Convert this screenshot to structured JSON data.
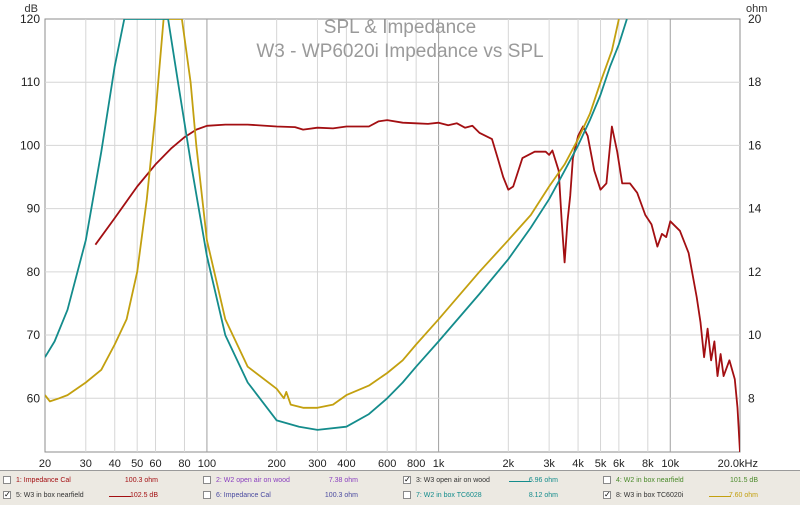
{
  "chart_data": {
    "type": "line",
    "title": "SPL & Impedance",
    "subtitle": "W3 - WP6020i Impedance vs SPL",
    "left_axis_unit": "dB",
    "right_axis_unit": "ohm",
    "x_unit": "Hz",
    "xscale": "log",
    "xlim": [
      20,
      20000
    ],
    "ylim_left": [
      51.5,
      120
    ],
    "ylim_right": [
      6.3,
      20
    ],
    "grid": true,
    "x_ticks": [
      {
        "v": 20,
        "label": "20"
      },
      {
        "v": 30,
        "label": "30"
      },
      {
        "v": 40,
        "label": "40"
      },
      {
        "v": 50,
        "label": "50"
      },
      {
        "v": 60,
        "label": "60"
      },
      {
        "v": 80,
        "label": "80"
      },
      {
        "v": 100,
        "label": "100"
      },
      {
        "v": 200,
        "label": "200"
      },
      {
        "v": 300,
        "label": "300"
      },
      {
        "v": 400,
        "label": "400"
      },
      {
        "v": 600,
        "label": "600"
      },
      {
        "v": 800,
        "label": "800"
      },
      {
        "v": 1000,
        "label": "1k"
      },
      {
        "v": 2000,
        "label": "2k"
      },
      {
        "v": 3000,
        "label": "3k"
      },
      {
        "v": 4000,
        "label": "4k"
      },
      {
        "v": 5000,
        "label": "5k"
      },
      {
        "v": 6000,
        "label": "6k"
      },
      {
        "v": 8000,
        "label": "8k"
      },
      {
        "v": 10000,
        "label": "10k"
      },
      {
        "v": 20000,
        "label": "20.0kHz"
      }
    ],
    "y_ticks_left": [
      60,
      70,
      80,
      90,
      100,
      110,
      120
    ],
    "y_ticks_right": [
      8,
      10,
      12,
      14,
      16,
      18,
      20
    ],
    "series": [
      {
        "name": "W3 in box nearfield",
        "axis": "left",
        "color": "#a30f12",
        "points": [
          [
            33,
            84.3
          ],
          [
            40,
            88.5
          ],
          [
            50,
            93.5
          ],
          [
            60,
            97
          ],
          [
            70,
            99.5
          ],
          [
            80,
            101.3
          ],
          [
            90,
            102.5
          ],
          [
            100,
            103.1
          ],
          [
            120,
            103.3
          ],
          [
            150,
            103.3
          ],
          [
            200,
            103
          ],
          [
            240,
            102.9
          ],
          [
            260,
            102.5
          ],
          [
            300,
            102.8
          ],
          [
            350,
            102.7
          ],
          [
            400,
            103
          ],
          [
            500,
            103
          ],
          [
            550,
            103.8
          ],
          [
            600,
            104
          ],
          [
            700,
            103.6
          ],
          [
            800,
            103.5
          ],
          [
            900,
            103.4
          ],
          [
            1000,
            103.6
          ],
          [
            1100,
            103.2
          ],
          [
            1200,
            103.5
          ],
          [
            1300,
            102.8
          ],
          [
            1400,
            103.1
          ],
          [
            1500,
            102
          ],
          [
            1700,
            101
          ],
          [
            1800,
            98
          ],
          [
            1900,
            95
          ],
          [
            2000,
            93
          ],
          [
            2100,
            93.5
          ],
          [
            2300,
            98
          ],
          [
            2600,
            99
          ],
          [
            2900,
            99
          ],
          [
            3000,
            98.5
          ],
          [
            3100,
            99.2
          ],
          [
            3300,
            96
          ],
          [
            3400,
            88
          ],
          [
            3500,
            81.5
          ],
          [
            3600,
            88
          ],
          [
            3700,
            92
          ],
          [
            3800,
            98
          ],
          [
            4000,
            101.5
          ],
          [
            4200,
            103
          ],
          [
            4400,
            101.5
          ],
          [
            4700,
            96
          ],
          [
            5000,
            93
          ],
          [
            5300,
            94
          ],
          [
            5600,
            103
          ],
          [
            5900,
            99
          ],
          [
            6200,
            94
          ],
          [
            6700,
            94
          ],
          [
            7200,
            92.5
          ],
          [
            7800,
            89
          ],
          [
            8300,
            87.5
          ],
          [
            8800,
            84
          ],
          [
            9200,
            86
          ],
          [
            9600,
            85.5
          ],
          [
            10000,
            88
          ],
          [
            11000,
            86.5
          ],
          [
            12000,
            83
          ],
          [
            13000,
            76
          ],
          [
            13500,
            72
          ],
          [
            14000,
            66.5
          ],
          [
            14500,
            71
          ],
          [
            15000,
            66
          ],
          [
            15500,
            69
          ],
          [
            16000,
            63.5
          ],
          [
            16500,
            67
          ],
          [
            17000,
            63.5
          ],
          [
            18000,
            66
          ],
          [
            19000,
            63
          ],
          [
            19500,
            58.5
          ],
          [
            20000,
            51.5
          ]
        ]
      },
      {
        "name": "W3 in box TC6020i",
        "axis": "right",
        "color": "#c3a00f",
        "points": [
          [
            20,
            8.1
          ],
          [
            21,
            7.9
          ],
          [
            23,
            8
          ],
          [
            25,
            8.1
          ],
          [
            30,
            8.5
          ],
          [
            35,
            8.9
          ],
          [
            40,
            9.7
          ],
          [
            45,
            10.5
          ],
          [
            50,
            12
          ],
          [
            55,
            14.3
          ],
          [
            60,
            17
          ],
          [
            65,
            20
          ],
          [
            78,
            20
          ],
          [
            85,
            18
          ],
          [
            90,
            16
          ],
          [
            100,
            13
          ],
          [
            120,
            10.5
          ],
          [
            150,
            9
          ],
          [
            200,
            8.3
          ],
          [
            215,
            8
          ],
          [
            220,
            8.2
          ],
          [
            230,
            7.8
          ],
          [
            260,
            7.7
          ],
          [
            300,
            7.7
          ],
          [
            350,
            7.8
          ],
          [
            400,
            8.1
          ],
          [
            500,
            8.4
          ],
          [
            600,
            8.8
          ],
          [
            700,
            9.2
          ],
          [
            800,
            9.7
          ],
          [
            1000,
            10.5
          ],
          [
            1500,
            12
          ],
          [
            2000,
            13
          ],
          [
            2500,
            13.8
          ],
          [
            3000,
            14.7
          ],
          [
            3500,
            15.4
          ],
          [
            4000,
            16.2
          ],
          [
            4500,
            17
          ],
          [
            5000,
            18
          ],
          [
            5600,
            19
          ],
          [
            6000,
            20
          ]
        ]
      },
      {
        "name": "W3 open air on wood",
        "axis": "right",
        "color": "#148c8c",
        "points": [
          [
            20,
            9.3
          ],
          [
            22,
            9.8
          ],
          [
            25,
            10.8
          ],
          [
            30,
            13
          ],
          [
            35,
            15.8
          ],
          [
            40,
            18.5
          ],
          [
            44,
            20
          ],
          [
            68,
            20
          ],
          [
            75,
            18
          ],
          [
            85,
            15.5
          ],
          [
            100,
            12.5
          ],
          [
            120,
            10
          ],
          [
            150,
            8.5
          ],
          [
            200,
            7.3
          ],
          [
            250,
            7.1
          ],
          [
            300,
            7
          ],
          [
            400,
            7.1
          ],
          [
            500,
            7.5
          ],
          [
            600,
            8
          ],
          [
            700,
            8.5
          ],
          [
            800,
            9
          ],
          [
            1000,
            9.8
          ],
          [
            1500,
            11.3
          ],
          [
            2000,
            12.4
          ],
          [
            2500,
            13.4
          ],
          [
            3000,
            14.3
          ],
          [
            3500,
            15.2
          ],
          [
            4000,
            16
          ],
          [
            4500,
            16.8
          ],
          [
            5000,
            17.6
          ],
          [
            5500,
            18.5
          ],
          [
            6000,
            19.2
          ],
          [
            6500,
            20
          ]
        ]
      }
    ],
    "legend": [
      {
        "checked": false,
        "name": "1: Impedance Cal",
        "value": "100.3 ohm",
        "color": "#a30f12",
        "swatch": false
      },
      {
        "checked": false,
        "name": "2: W2 open air on wood",
        "value": "7.38 ohm",
        "color": "#8a3fbf",
        "swatch": false
      },
      {
        "checked": true,
        "name": "3: W3 open air on wood",
        "value": "6.96 ohm",
        "color": "#148c8c",
        "swatch": true
      },
      {
        "checked": false,
        "name": "4: W2 in box nearfield",
        "value": "101.5 dB",
        "color": "#4a8a2a",
        "swatch": false
      },
      {
        "checked": true,
        "name": "5: W3 in box nearfield",
        "value": "102.5 dB",
        "color": "#a30f12",
        "swatch": true
      },
      {
        "checked": false,
        "name": "6: Impedance Cal",
        "value": "100.3 ohm",
        "color": "#4a4aa0",
        "swatch": false
      },
      {
        "checked": false,
        "name": "7: W2 in box TC6028",
        "value": "8.12 ohm",
        "color": "#148c8c",
        "swatch": false
      },
      {
        "checked": true,
        "name": "8: W3 in box TC6020i",
        "value": "7.60 ohm",
        "color": "#c3a00f",
        "swatch": true
      }
    ]
  }
}
